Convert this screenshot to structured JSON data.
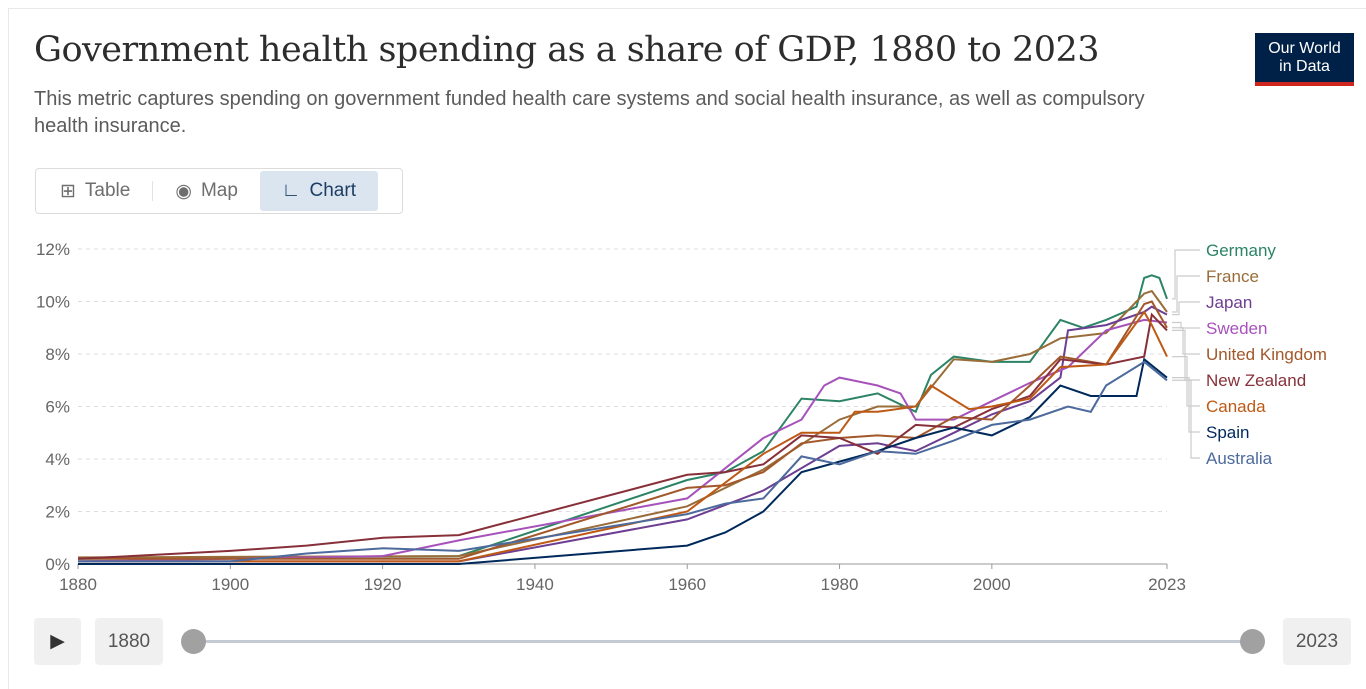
{
  "title": "Government health spending as a share of GDP, 1880 to 2023",
  "subtitle": "This metric captures spending on government funded health care systems and social health insurance, as well as compulsory health insurance.",
  "logo": {
    "line1": "Our World",
    "line2": "in Data"
  },
  "tabs": [
    {
      "label": "Table",
      "icon": "table-icon"
    },
    {
      "label": "Map",
      "icon": "globe-icon"
    },
    {
      "label": "Chart",
      "icon": "line-chart-icon",
      "active": true
    }
  ],
  "timeline": {
    "start_label": "1880",
    "end_label": "2023",
    "play_icon": "play-icon",
    "start_fraction": 0,
    "end_fraction": 1
  },
  "chart_data": {
    "type": "line",
    "title": "Government health spending as a share of GDP, 1880 to 2023",
    "xlim": [
      1880,
      2023
    ],
    "ylim": [
      0,
      12
    ],
    "x_ticks": [
      "1880",
      "1900",
      "1920",
      "1940",
      "1960",
      "1980",
      "2000",
      "2023"
    ],
    "y_ticks": [
      "0%",
      "2%",
      "4%",
      "6%",
      "8%",
      "10%",
      "12%"
    ],
    "grid": "horizontal dashed",
    "legend": "right",
    "series": [
      {
        "name": "Germany",
        "color": "#2c8465",
        "x": [
          1880,
          1930,
          1960,
          1965,
          1970,
          1975,
          1980,
          1985,
          1990,
          1992,
          1995,
          2000,
          2005,
          2009,
          2012,
          2015,
          2019,
          2020,
          2021,
          2022,
          2023
        ],
        "y": [
          0.2,
          0.3,
          3.2,
          3.5,
          4.3,
          6.3,
          6.2,
          6.5,
          5.8,
          7.2,
          7.9,
          7.7,
          7.7,
          9.3,
          9.0,
          9.3,
          9.8,
          10.9,
          11.0,
          10.9,
          10.1
        ]
      },
      {
        "name": "France",
        "color": "#996d39",
        "x": [
          1880,
          1930,
          1960,
          1970,
          1980,
          1985,
          1990,
          1995,
          2000,
          2005,
          2009,
          2015,
          2020,
          2021,
          2023
        ],
        "y": [
          0.25,
          0.3,
          2.2,
          3.6,
          5.5,
          6.0,
          6.0,
          7.8,
          7.7,
          8.0,
          8.6,
          8.8,
          10.3,
          10.4,
          9.6
        ]
      },
      {
        "name": "Japan",
        "color": "#6d3e91",
        "x": [
          1880,
          1930,
          1960,
          1970,
          1980,
          1985,
          1990,
          1995,
          2000,
          2005,
          2009,
          2010,
          2015,
          2020,
          2021,
          2023
        ],
        "y": [
          0.1,
          0.1,
          1.7,
          2.8,
          4.5,
          4.6,
          4.3,
          5.0,
          5.7,
          6.2,
          7.1,
          8.9,
          9.1,
          9.6,
          9.8,
          9.5
        ]
      },
      {
        "name": "Sweden",
        "color": "#a652ba",
        "x": [
          1880,
          1920,
          1930,
          1960,
          1970,
          1975,
          1978,
          1980,
          1985,
          1988,
          1990,
          1995,
          2000,
          2005,
          2010,
          2015,
          2020,
          2023
        ],
        "y": [
          0.1,
          0.3,
          0.9,
          2.5,
          4.8,
          5.5,
          6.8,
          7.1,
          6.8,
          6.5,
          5.5,
          5.5,
          6.2,
          6.9,
          7.5,
          8.9,
          9.3,
          9.2
        ]
      },
      {
        "name": "United Kingdom",
        "color": "#a2582a",
        "x": [
          1880,
          1930,
          1960,
          1965,
          1970,
          1975,
          1980,
          1985,
          1990,
          1995,
          2000,
          2005,
          2009,
          2015,
          2020,
          2021,
          2023
        ],
        "y": [
          0.2,
          0.2,
          2.9,
          3.0,
          3.5,
          4.6,
          4.8,
          4.9,
          4.8,
          5.6,
          5.5,
          6.8,
          7.9,
          7.6,
          9.9,
          10.0,
          9.0
        ]
      },
      {
        "name": "New Zealand",
        "color": "#883039",
        "x": [
          1880,
          1900,
          1910,
          1920,
          1930,
          1960,
          1965,
          1970,
          1975,
          1980,
          1985,
          1990,
          1995,
          2000,
          2005,
          2009,
          2015,
          2020,
          2021,
          2023
        ],
        "y": [
          0.2,
          0.5,
          0.7,
          1.0,
          1.1,
          3.4,
          3.5,
          3.8,
          4.9,
          4.8,
          4.2,
          5.3,
          5.2,
          5.9,
          6.4,
          7.8,
          7.6,
          7.9,
          9.5,
          8.9
        ]
      },
      {
        "name": "Canada",
        "color": "#be5915",
        "x": [
          1880,
          1930,
          1960,
          1970,
          1975,
          1980,
          1982,
          1985,
          1990,
          1992,
          1997,
          2000,
          2005,
          2009,
          2015,
          2020,
          2021,
          2023
        ],
        "y": [
          0.1,
          0.1,
          2.0,
          4.2,
          5.0,
          5.0,
          5.8,
          5.8,
          6.0,
          6.8,
          5.9,
          6.0,
          6.3,
          7.5,
          7.6,
          9.6,
          9.1,
          7.9
        ]
      },
      {
        "name": "Spain",
        "color": "#00295b",
        "x": [
          1880,
          1930,
          1960,
          1965,
          1970,
          1975,
          1980,
          1985,
          1990,
          1995,
          2000,
          2005,
          2009,
          2013,
          2019,
          2020,
          2023
        ],
        "y": [
          0,
          0,
          0.7,
          1.2,
          2.0,
          3.5,
          3.9,
          4.3,
          4.8,
          5.2,
          4.9,
          5.6,
          6.8,
          6.4,
          6.4,
          7.8,
          7.1
        ]
      },
      {
        "name": "Australia",
        "color": "#4c6a9c",
        "x": [
          1880,
          1900,
          1910,
          1920,
          1930,
          1960,
          1965,
          1970,
          1975,
          1980,
          1985,
          1990,
          1995,
          2000,
          2005,
          2010,
          2013,
          2015,
          2020,
          2023
        ],
        "y": [
          0.1,
          0.1,
          0.4,
          0.6,
          0.5,
          1.9,
          2.3,
          2.5,
          4.1,
          3.8,
          4.3,
          4.2,
          4.7,
          5.3,
          5.5,
          6.0,
          5.8,
          6.8,
          7.7,
          7.0
        ]
      }
    ]
  }
}
